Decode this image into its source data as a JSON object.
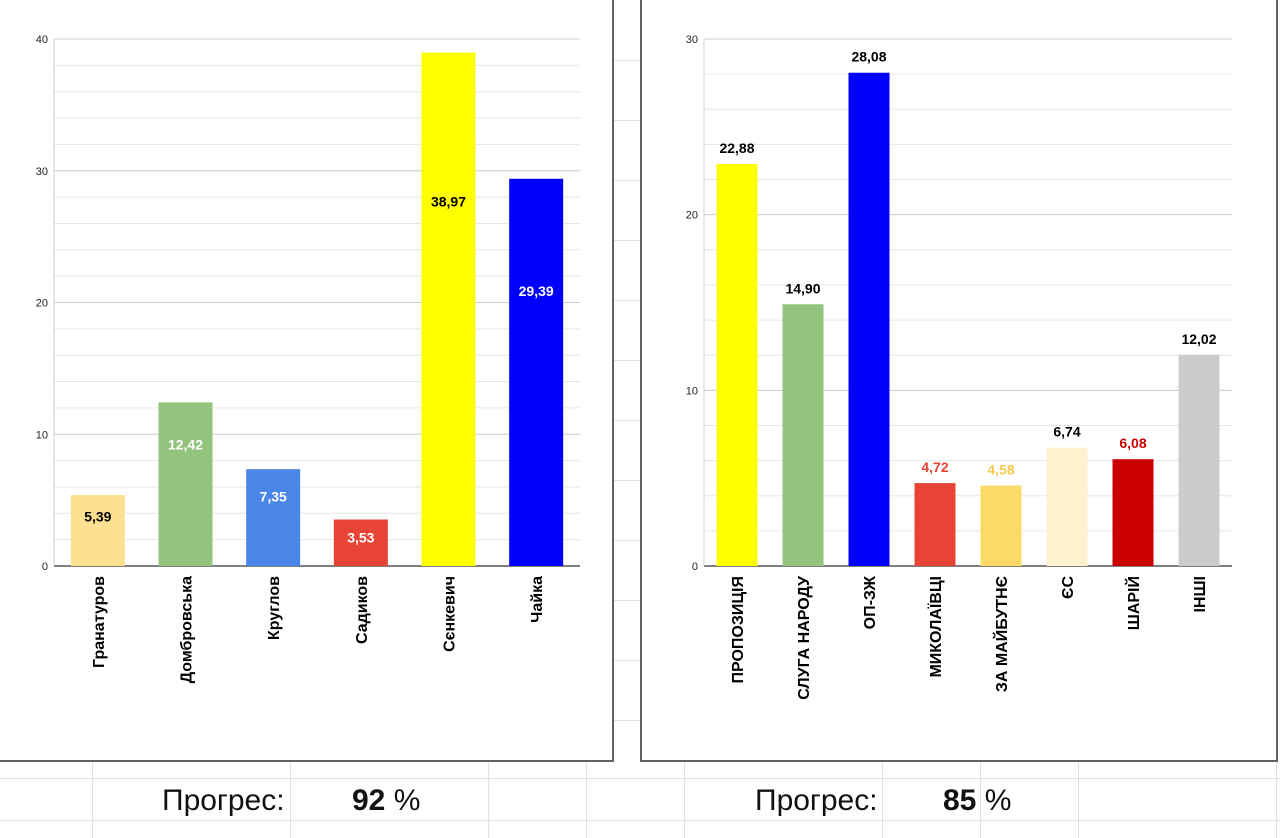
{
  "chart_data": [
    {
      "type": "bar",
      "title": "",
      "xlabel": "",
      "ylabel": "",
      "ylim": [
        0,
        40
      ],
      "yticks": [
        0,
        10,
        20,
        30,
        40
      ],
      "grid": true,
      "categories": [
        "Гранатуров",
        "Домбровська",
        "Круглов",
        "Садиков",
        "Сєнкевич",
        "Чайка"
      ],
      "values": [
        5.39,
        12.42,
        7.35,
        3.53,
        38.97,
        29.39
      ],
      "value_labels": [
        "5,39",
        "12,42",
        "7,35",
        "3,53",
        "38,97",
        "29,39"
      ],
      "bar_colors": [
        "#fce08f",
        "#93c47d",
        "#4a86e8",
        "#e84436",
        "#ffff00",
        "#0000ff"
      ],
      "label_colors": [
        "#000000",
        "#ffffff",
        "#ffffff",
        "#ffffff",
        "#000000",
        "#ffffff"
      ],
      "label_position": "inside"
    },
    {
      "type": "bar",
      "title": "",
      "xlabel": "",
      "ylabel": "",
      "ylim": [
        0,
        30
      ],
      "yticks": [
        0,
        10,
        20,
        30
      ],
      "grid": true,
      "categories": [
        "ПРОПОЗИЦІЯ",
        "СЛУГА НАРОДУ",
        "ОП-ЗЖ",
        "МИКОЛАЇВЦІ",
        "ЗА МАЙБУТНЄ",
        "ЄС",
        "ШАРІЙ",
        "ІНШІ"
      ],
      "values": [
        22.88,
        14.9,
        28.08,
        4.72,
        4.58,
        6.74,
        6.08,
        12.02
      ],
      "value_labels": [
        "22,88",
        "14,90",
        "28,08",
        "4,72",
        "4,58",
        "6,74",
        "6,08",
        "12,02"
      ],
      "bar_colors": [
        "#ffff00",
        "#93c47d",
        "#0000ff",
        "#e84436",
        "#fdd966",
        "#fff2cc",
        "#cc0000",
        "#cccccc"
      ],
      "label_colors": [
        "#000000",
        "#000000",
        "#000000",
        "#e84436",
        "#f6c94b",
        "#000000",
        "#cc0000",
        "#000000"
      ],
      "label_position": "above"
    }
  ],
  "progress": [
    {
      "label": "Прогрес:",
      "value": "92",
      "unit": "%"
    },
    {
      "label": "Прогрес:",
      "value": "85",
      "unit": "%"
    }
  ]
}
